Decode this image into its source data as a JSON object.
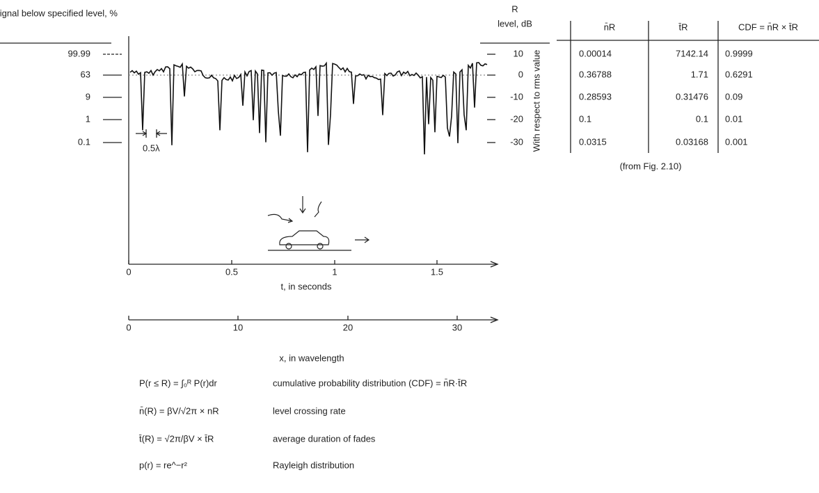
{
  "left_axis": {
    "title": "Signal below specified level, %",
    "ticks": [
      99.99,
      63,
      9,
      1,
      0.1
    ]
  },
  "right_axis": {
    "symbol": "R",
    "title": "level, dB",
    "ticks": [
      10,
      0,
      -10,
      -20,
      -30
    ],
    "side_label": "With respect to rms value"
  },
  "spacing_label": "0.5λ",
  "time_axis": {
    "label": "t, in seconds",
    "ticks": [
      0,
      0.5,
      1,
      1.5
    ]
  },
  "wavelength_axis": {
    "label": "x, in wavelength",
    "ticks": [
      0,
      10,
      20,
      30
    ]
  },
  "table": {
    "headers": [
      "n̄R",
      "t̄R",
      "CDF = n̄R × t̄R"
    ],
    "rows": [
      [
        0.00014,
        7142.14,
        0.9999
      ],
      [
        0.36788,
        1.71,
        0.6291
      ],
      [
        0.28593,
        0.31476,
        0.09
      ],
      [
        0.1,
        0.1,
        0.01
      ],
      [
        0.0315,
        0.03168,
        0.001
      ]
    ],
    "caption": "(from Fig. 2.10)"
  },
  "formulas": [
    {
      "formula": "P(r ≤ R) = ∫₀ᴿ P(r)dr",
      "description": "cumulative probability distribution (CDF) = n̄R·t̄R"
    },
    {
      "formula": "n̄(R) = βV/√2π × nR",
      "description": "level crossing rate"
    },
    {
      "formula": "t̄(R) = √2π/βV × t̄R",
      "description": "average duration of fades"
    },
    {
      "formula": "p(r) = re^−r²",
      "description": "Rayleigh distribution"
    }
  ]
}
